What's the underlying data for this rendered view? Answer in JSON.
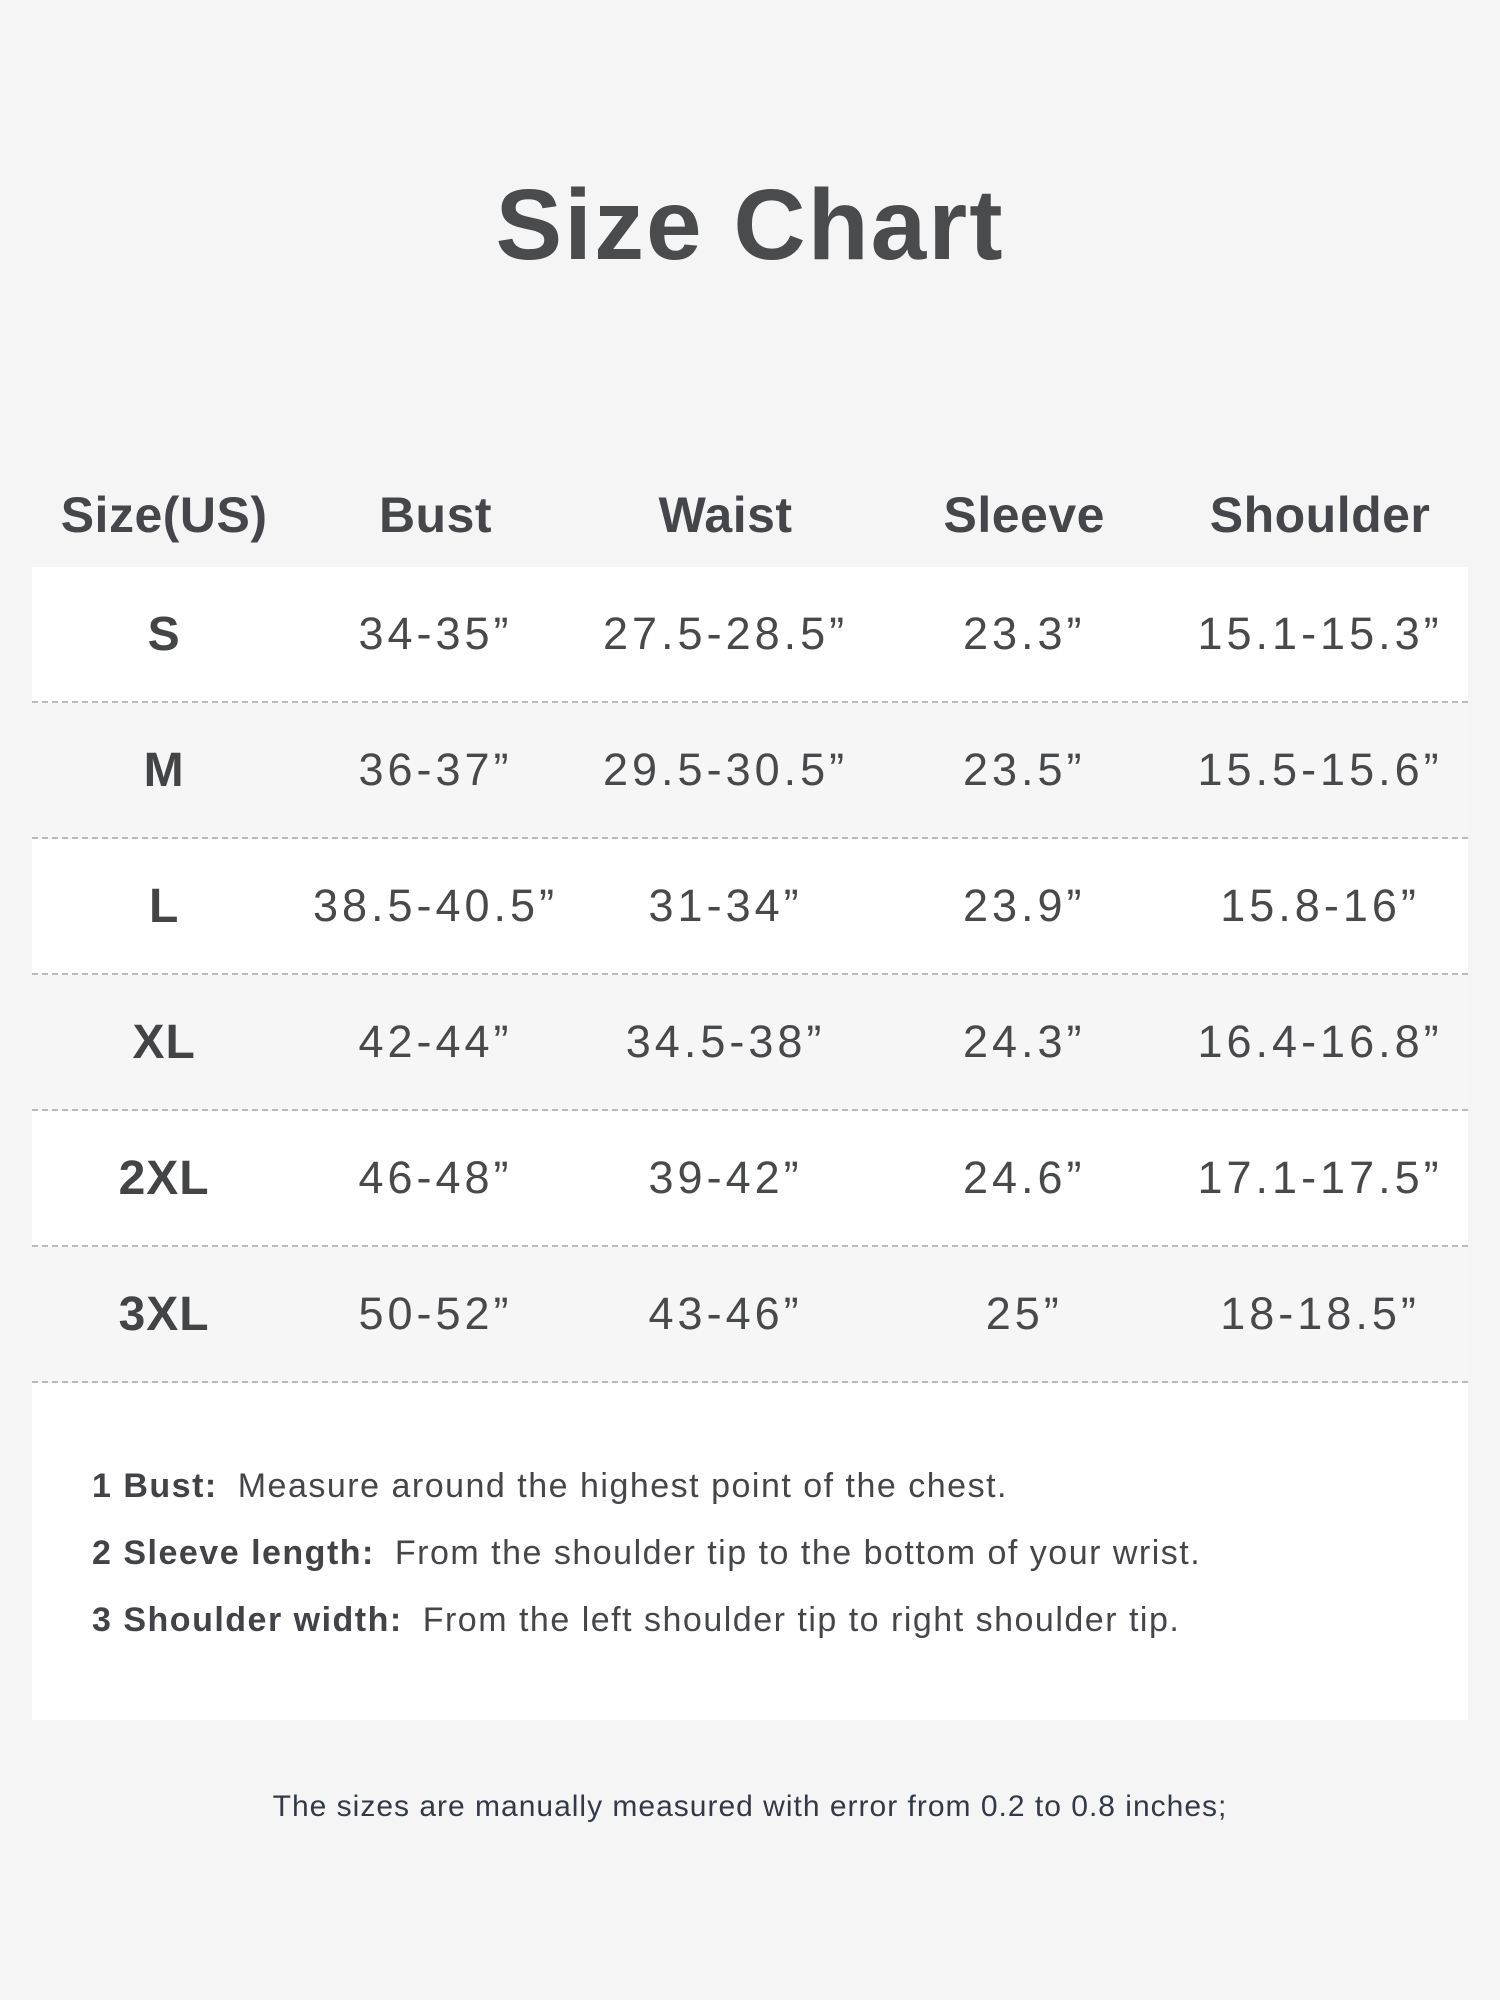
{
  "title": "Size Chart",
  "table": {
    "headers": [
      "Size(US)",
      "Bust",
      "Waist",
      "Sleeve",
      "Shoulder"
    ],
    "rows": [
      [
        "S",
        "34-35”",
        "27.5-28.5”",
        "23.3”",
        "15.1-15.3”"
      ],
      [
        "M",
        "36-37”",
        "29.5-30.5”",
        "23.5”",
        "15.5-15.6”"
      ],
      [
        "L",
        "38.5-40.5”",
        "31-34”",
        "23.9”",
        "15.8-16”"
      ],
      [
        "XL",
        "42-44”",
        "34.5-38”",
        "24.3”",
        "16.4-16.8”"
      ],
      [
        "2XL",
        "46-48”",
        "39-42”",
        "24.6”",
        "17.1-17.5”"
      ],
      [
        "3XL",
        "50-52”",
        "43-46”",
        "25”",
        "18-18.5”"
      ]
    ]
  },
  "notes": [
    {
      "label": "1 Bust:",
      "text": "Measure around the highest point of the chest."
    },
    {
      "label": "2 Sleeve length:",
      "text": "From the shoulder tip to the bottom of your wrist."
    },
    {
      "label": "3 Shoulder width:",
      "text": "From the left shoulder tip to right shoulder tip."
    }
  ],
  "footer": "The sizes are manually measured with error from 0.2 to 0.8 inches;",
  "colors": {
    "page_background": "#f5f5f6",
    "panel_background": "#ffffff",
    "alt_row_background": "#f6f6f7",
    "text": "#47484a",
    "footer_text": "#333a47"
  }
}
